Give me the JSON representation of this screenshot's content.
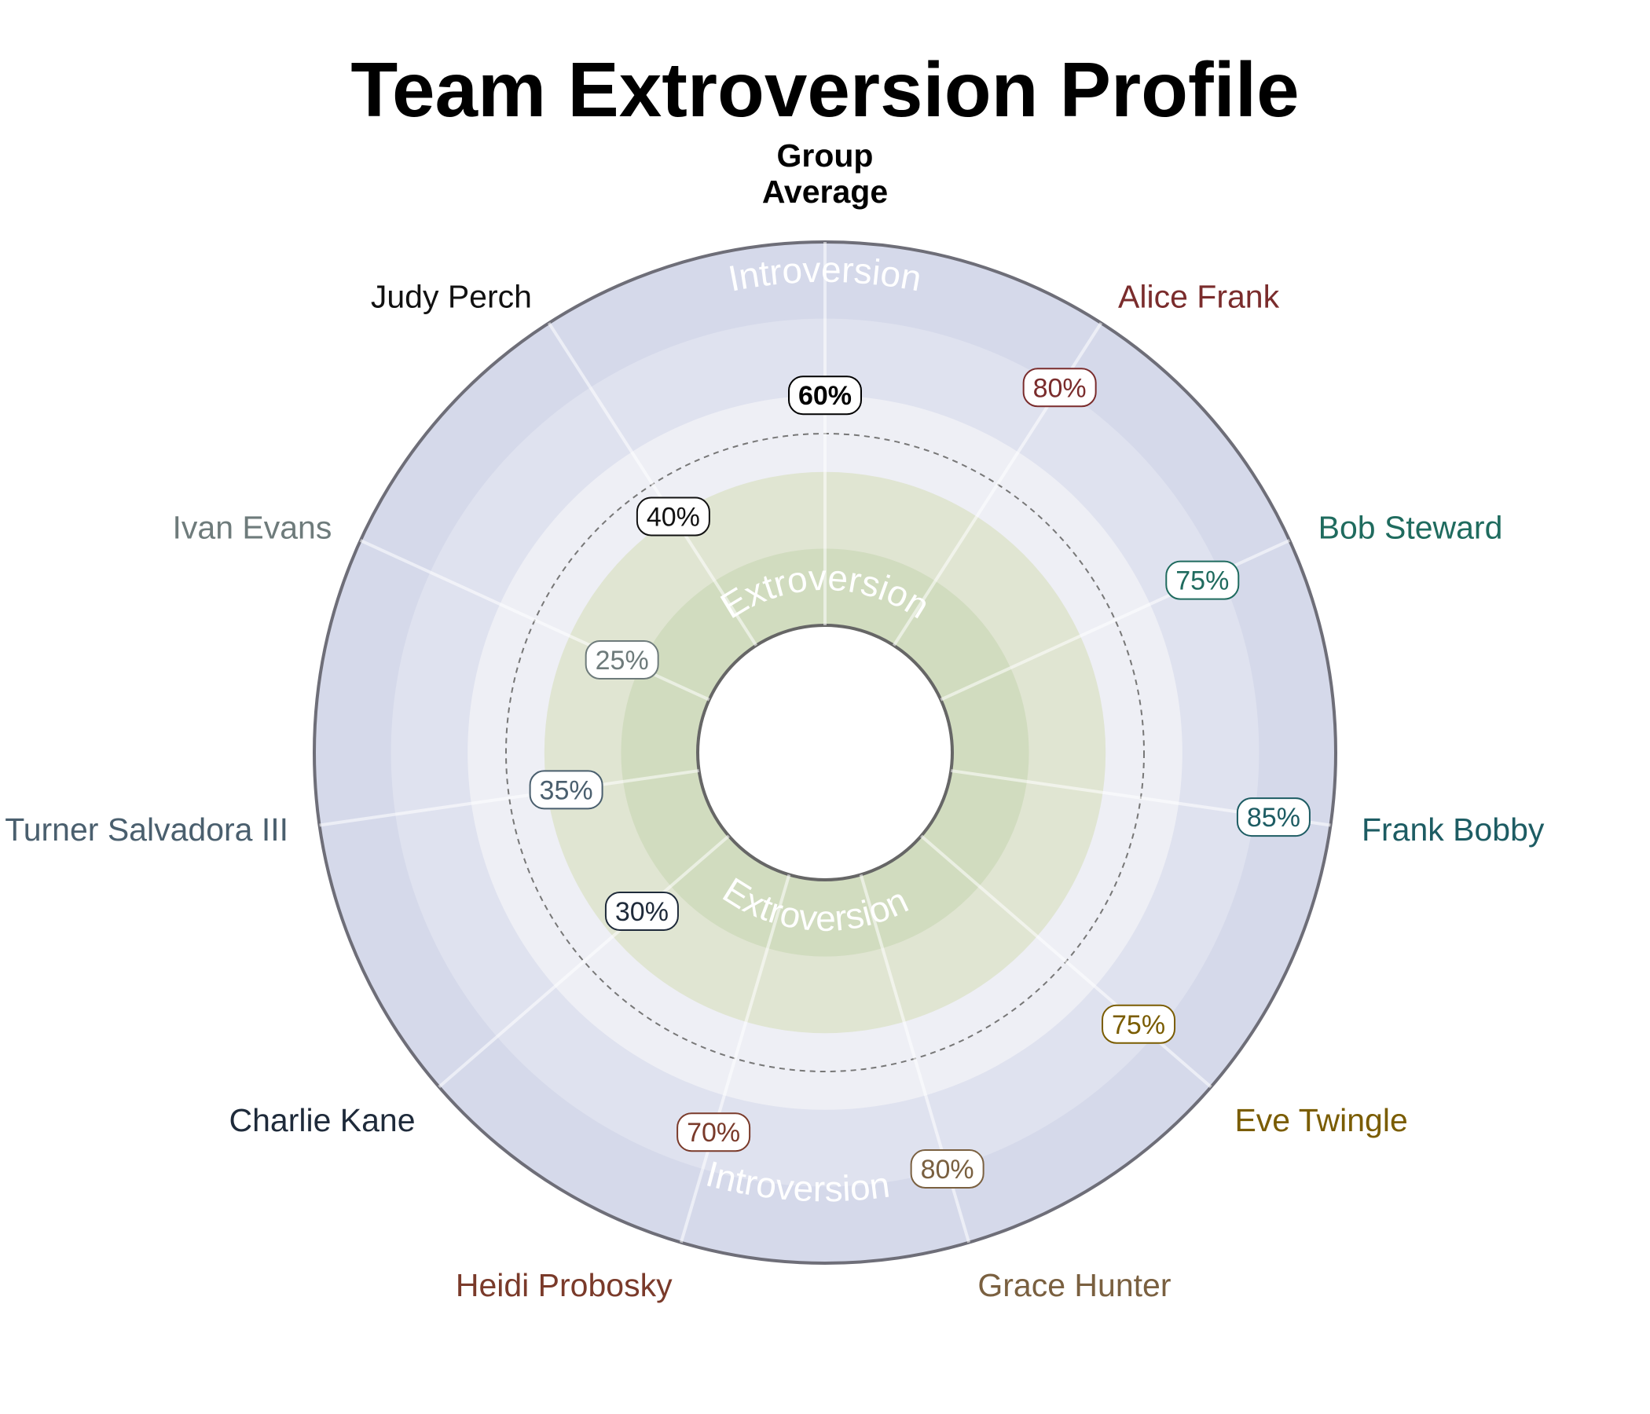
{
  "chart_data": {
    "type": "radial",
    "title": "Team Extroversion Profile",
    "center_to_edge_labels": [
      "Extroversion",
      "Introversion"
    ],
    "reference_ring": 50,
    "scale": [
      0,
      100
    ],
    "members": [
      {
        "name": "Group\nAverage",
        "value": 60,
        "color": "#000000",
        "bold": true
      },
      {
        "name": "Alice Frank",
        "value": 80,
        "color": "#7a2c2c"
      },
      {
        "name": "Bob Steward",
        "value": 75,
        "color": "#1f6b5e"
      },
      {
        "name": "Frank Bobby",
        "value": 85,
        "color": "#1d5c63"
      },
      {
        "name": "Eve Twingle",
        "value": 75,
        "color": "#7a5c00"
      },
      {
        "name": "Grace Hunter",
        "value": 80,
        "color": "#7a6040"
      },
      {
        "name": "Heidi Probosky",
        "value": 70,
        "color": "#7a3a2a"
      },
      {
        "name": "Charlie Kane",
        "value": 30,
        "color": "#1e2a3a"
      },
      {
        "name": "Ted Turner Salvadora III",
        "value": 35,
        "color": "#4a5f6e"
      },
      {
        "name": "Ivan Evans",
        "value": 25,
        "color": "#6e7b7b"
      },
      {
        "name": "Judy Perch",
        "value": 40,
        "color": "#111111"
      }
    ]
  }
}
